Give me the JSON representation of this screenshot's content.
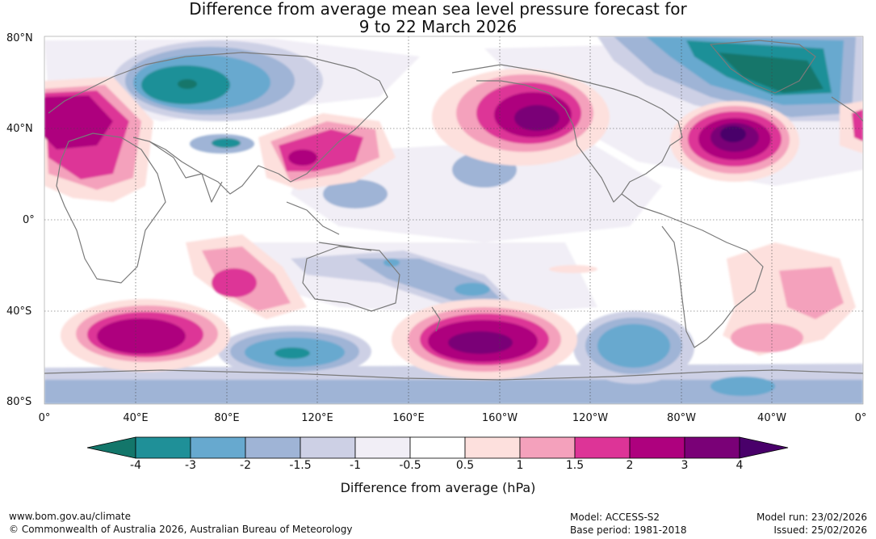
{
  "title": {
    "line1": "Difference from average mean sea level pressure forecast for",
    "line2": "9 to 22 March 2026"
  },
  "lat_ticks": [
    "80°N",
    "40°N",
    "0°",
    "40°S",
    "80°S"
  ],
  "lon_ticks": [
    "0°",
    "40°E",
    "80°E",
    "120°E",
    "160°E",
    "160°W",
    "120°W",
    "80°W",
    "40°W",
    "0°"
  ],
  "colorbar": {
    "ticks": [
      "-4",
      "-3",
      "-2",
      "-1.5",
      "-1",
      "-0.5",
      "0.5",
      "1",
      "1.5",
      "2",
      "3",
      "4"
    ],
    "label": "Difference from average (hPa)",
    "colors": [
      "#13766a",
      "#1f9098",
      "#67a9cf",
      "#9fb4d6",
      "#cdd0e5",
      "#f1eef6",
      "#ffffff",
      "#fde0dd",
      "#f4a1bc",
      "#dd3497",
      "#ae017e",
      "#7a0177",
      "#49006a"
    ]
  },
  "footer": {
    "url": "www.bom.gov.au/climate",
    "copyright": "© Commonwealth of Australia 2026, Australian Bureau of Meteorology",
    "model": "Model: ACCESS-S2",
    "base_period": "Base period: 1981-2018",
    "model_run": "Model run: 23/02/2026",
    "issued": "Issued: 25/02/2026"
  }
}
